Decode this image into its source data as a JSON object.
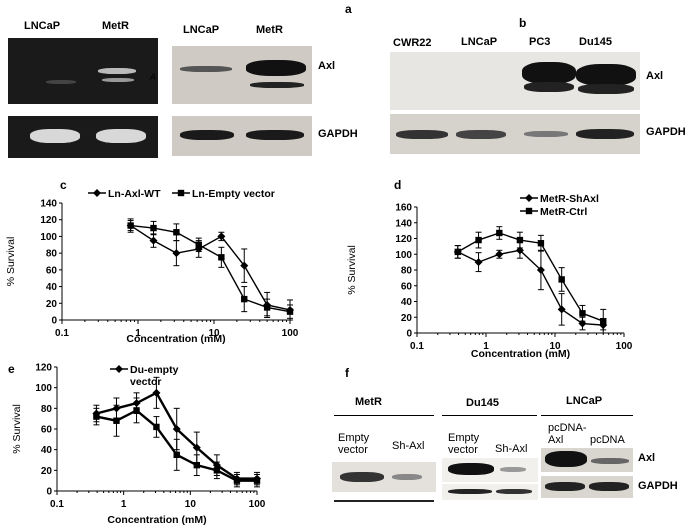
{
  "panel_a": {
    "letter": "a",
    "left_lanes": [
      "LNCaP",
      "MetR"
    ],
    "right_lanes": [
      "LNCaP",
      "MetR"
    ],
    "protein_top": "Axl",
    "protein_bottom": "GAPDH",
    "arrow_mark": "A"
  },
  "panel_b": {
    "letter": "b",
    "lanes": [
      "CWR22",
      "LNCaP",
      "PC3",
      "Du145"
    ],
    "protein_top": "Axl",
    "protein_bottom": "GAPDH"
  },
  "panel_f": {
    "letter": "f",
    "groups": [
      {
        "title": "MetR",
        "lanes": [
          "Empty\nvector",
          "Sh-Axl"
        ]
      },
      {
        "title": "Du145",
        "lanes": [
          "Empty\nvector",
          "Sh-Axl"
        ]
      },
      {
        "title": "LNCaP",
        "lanes": [
          "pcDNA-\nAxl",
          "pcDNA"
        ]
      }
    ],
    "protein_top": "Axl",
    "protein_bottom": "GAPDH"
  },
  "chart_data": [
    {
      "id": "c",
      "letter": "c",
      "type": "line",
      "xscale": "log",
      "xlim": [
        0.1,
        100
      ],
      "ylim": [
        0,
        140
      ],
      "xticks": [
        "0.1",
        "1",
        "10",
        "100"
      ],
      "yticks": [
        "0",
        "20",
        "40",
        "60",
        "80",
        "100",
        "120",
        "140"
      ],
      "xlabel": "Concentration (mM)",
      "ylabel": "% Survival",
      "legend": "top",
      "series": [
        {
          "name": "Ln-Axl-WT",
          "marker": "diamond",
          "x": [
            0.8,
            1.6,
            3.2,
            6.3,
            12.5,
            25,
            50,
            100
          ],
          "y": [
            113,
            95,
            80,
            85,
            100,
            65,
            18,
            12
          ],
          "err": [
            6,
            8,
            15,
            10,
            5,
            20,
            15,
            12
          ]
        },
        {
          "name": "Ln-Empty vector",
          "marker": "square",
          "x": [
            0.8,
            1.6,
            3.2,
            6.3,
            12.5,
            25,
            50,
            100
          ],
          "y": [
            113,
            110,
            105,
            90,
            75,
            25,
            15,
            10
          ],
          "err": [
            8,
            8,
            10,
            8,
            12,
            15,
            10,
            8
          ]
        }
      ]
    },
    {
      "id": "d",
      "letter": "d",
      "type": "line",
      "xscale": "log",
      "xlim": [
        0.1,
        100
      ],
      "ylim": [
        0,
        160
      ],
      "xticks": [
        "0.1",
        "1",
        "10",
        "100"
      ],
      "yticks": [
        "0",
        "20",
        "40",
        "60",
        "80",
        "100",
        "120",
        "140",
        "160"
      ],
      "xlabel": "Concentration (mM)",
      "ylabel": "% Survival",
      "legend": "top-right",
      "series": [
        {
          "name": "MetR-ShAxl",
          "marker": "diamond",
          "x": [
            0.39,
            0.78,
            1.56,
            3.1,
            6.25,
            12.5,
            25,
            50
          ],
          "y": [
            103,
            90,
            100,
            105,
            80,
            30,
            12,
            10
          ],
          "err": [
            8,
            12,
            5,
            10,
            25,
            20,
            8,
            6
          ]
        },
        {
          "name": "MetR-Ctrl",
          "marker": "square",
          "x": [
            0.39,
            0.78,
            1.56,
            3.1,
            6.25,
            12.5,
            25,
            50
          ],
          "y": [
            103,
            118,
            127,
            118,
            114,
            68,
            25,
            15
          ],
          "err": [
            8,
            10,
            8,
            10,
            10,
            15,
            10,
            15
          ]
        }
      ]
    },
    {
      "id": "e",
      "letter": "e",
      "type": "line",
      "xscale": "log",
      "xlim": [
        0.1,
        100
      ],
      "ylim": [
        0,
        120
      ],
      "xticks": [
        "0.1",
        "1",
        "10",
        "100"
      ],
      "yticks": [
        "0",
        "20",
        "40",
        "60",
        "80",
        "100",
        "120"
      ],
      "xlabel": "Concentration (mM)",
      "ylabel": "% Survival",
      "legend": "top",
      "series": [
        {
          "name": "Du-empty vector",
          "marker": "diamond",
          "x": [
            0.39,
            0.78,
            1.56,
            3.1,
            6.25,
            12.5,
            25,
            50,
            100
          ],
          "y": [
            75,
            80,
            85,
            95,
            60,
            42,
            25,
            12,
            12
          ],
          "err": [
            8,
            10,
            10,
            15,
            20,
            15,
            10,
            6,
            6
          ]
        },
        {
          "name": "",
          "marker": "square",
          "x": [
            0.39,
            0.78,
            1.56,
            3.1,
            6.25,
            12.5,
            25,
            50,
            100
          ],
          "y": [
            72,
            68,
            78,
            62,
            35,
            25,
            20,
            10,
            10
          ],
          "err": [
            8,
            15,
            12,
            10,
            15,
            10,
            8,
            6,
            6
          ]
        }
      ]
    }
  ]
}
